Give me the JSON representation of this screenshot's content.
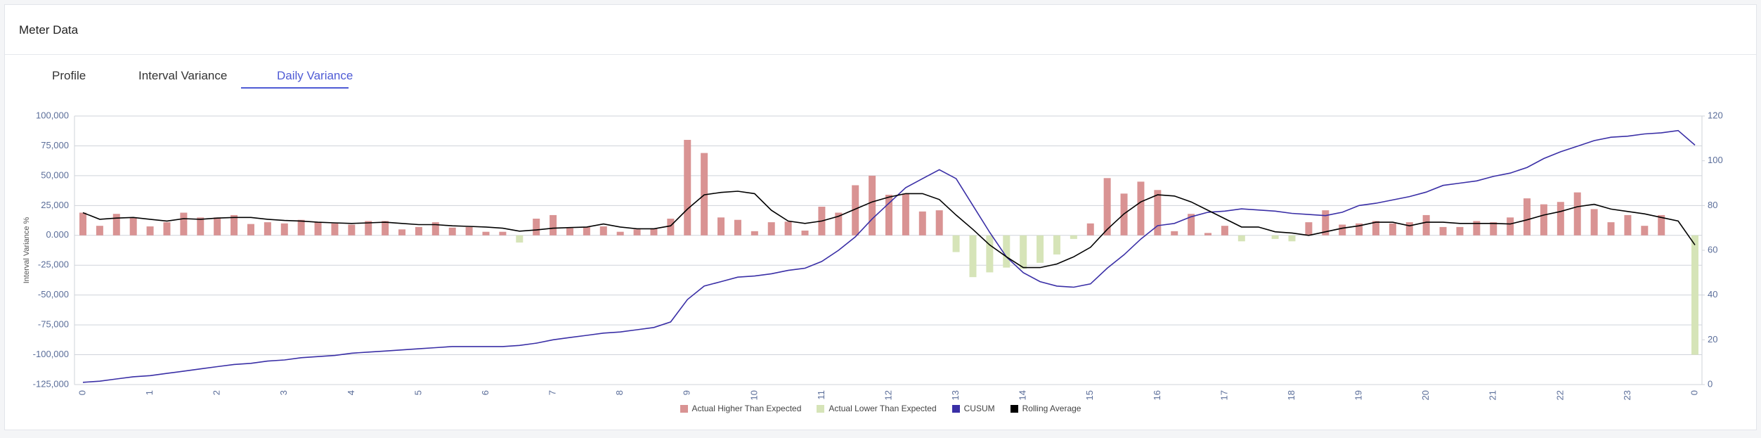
{
  "header": {
    "title": "Meter Data"
  },
  "tabs": [
    "Profile",
    "Interval Variance",
    "Daily Variance"
  ],
  "active_tab": 2,
  "chart_data": {
    "type": "combo",
    "y_label": "Interval Variance %",
    "categories": [
      "0",
      null,
      null,
      null,
      "1",
      null,
      null,
      null,
      "2",
      null,
      null,
      null,
      "3",
      null,
      null,
      null,
      "4",
      null,
      null,
      null,
      "5",
      null,
      null,
      null,
      "6",
      null,
      null,
      null,
      "7",
      null,
      null,
      null,
      "8",
      null,
      null,
      null,
      "9",
      null,
      null,
      null,
      "10",
      null,
      null,
      null,
      "11",
      null,
      null,
      null,
      "12",
      null,
      null,
      null,
      "13",
      null,
      null,
      null,
      "14",
      null,
      null,
      null,
      "15",
      null,
      null,
      null,
      "16",
      null,
      null,
      null,
      "17",
      null,
      null,
      null,
      "18",
      null,
      null,
      null,
      "19",
      null,
      null,
      null,
      "20",
      null,
      null,
      null,
      "21",
      null,
      null,
      null,
      "22",
      null,
      null,
      null,
      "23",
      null,
      null,
      null,
      "0"
    ],
    "ylim": [
      -125000,
      100000
    ],
    "yticks": [
      {
        "value": 100000,
        "label": "100,000"
      },
      {
        "value": 75000,
        "label": "75,000"
      },
      {
        "value": 50000,
        "label": "50,000"
      },
      {
        "value": 25000,
        "label": "25,000"
      },
      {
        "value": 0,
        "label": "0.000"
      },
      {
        "value": -25000,
        "label": "-25,000"
      },
      {
        "value": -50000,
        "label": "-50,000"
      },
      {
        "value": -75000,
        "label": "-75,000"
      },
      {
        "value": -100000,
        "label": "-100,000"
      },
      {
        "value": -125000,
        "label": "-125,000"
      }
    ],
    "y2lim": [
      0,
      120
    ],
    "y2ticks": [
      0,
      20,
      40,
      60,
      80,
      100,
      120
    ],
    "grid": true,
    "legend": "bottom",
    "series": [
      {
        "name": "Actual Higher Than Expected",
        "type": "bar",
        "color": "#d99393",
        "values": [
          19000,
          8000,
          18000,
          15000,
          7500,
          11000,
          19000,
          15000,
          15000,
          17000,
          9500,
          11000,
          10000,
          13000,
          11000,
          10000,
          9000,
          12000,
          12000,
          5000,
          7000,
          11000,
          6500,
          7000,
          3000,
          3000,
          null,
          14000,
          17000,
          6000,
          7000,
          7500,
          3000,
          5000,
          6000,
          14000,
          80000,
          69000,
          15000,
          13000,
          3500,
          11000,
          11500,
          4000,
          24000,
          19000,
          42000,
          50000,
          34000,
          35000,
          20000,
          21000,
          null,
          null,
          null,
          null,
          null,
          null,
          null,
          null,
          10000,
          48000,
          35000,
          45000,
          38000,
          3500,
          18000,
          2000,
          8000,
          null,
          null,
          null,
          null,
          11000,
          21000,
          9000,
          10000,
          12000,
          10000,
          11000,
          17000,
          7000,
          7000,
          12000,
          11000,
          15000,
          31000,
          26000,
          28000,
          36000,
          22000,
          11000,
          17000,
          8000,
          17000,
          null,
          null
        ]
      },
      {
        "name": "Actual Lower Than Expected",
        "type": "bar",
        "color": "#d6e4b8",
        "values": [
          null,
          null,
          null,
          null,
          null,
          null,
          null,
          null,
          null,
          null,
          null,
          null,
          null,
          null,
          null,
          null,
          null,
          null,
          null,
          null,
          null,
          null,
          null,
          null,
          null,
          null,
          -6000,
          null,
          null,
          null,
          null,
          null,
          null,
          null,
          null,
          null,
          null,
          null,
          null,
          null,
          null,
          null,
          null,
          null,
          null,
          null,
          null,
          null,
          null,
          null,
          null,
          null,
          -14000,
          -35000,
          -31000,
          -27000,
          -28000,
          -23000,
          -16000,
          -3000,
          null,
          null,
          null,
          null,
          null,
          null,
          null,
          null,
          null,
          -5000,
          null,
          -3000,
          -5000,
          null,
          null,
          null,
          null,
          null,
          null,
          null,
          null,
          null,
          null,
          null,
          null,
          null,
          null,
          null,
          null,
          null,
          null,
          null,
          null,
          null,
          null,
          null,
          -100000
        ]
      },
      {
        "name": "CUSUM",
        "type": "line",
        "axis": "y2",
        "color": "#3a2fa6",
        "values": [
          1,
          1.5,
          2.5,
          3.5,
          4,
          5,
          6,
          7,
          8,
          9,
          9.5,
          10.5,
          11,
          12,
          12.5,
          13,
          14,
          14.5,
          15,
          15.5,
          16,
          16.5,
          17,
          17,
          17,
          17,
          17.5,
          18.5,
          20,
          21,
          22,
          23,
          23.5,
          24.5,
          25.5,
          28,
          38,
          44,
          46,
          48,
          48.5,
          49.5,
          51,
          52,
          55,
          60,
          66,
          74,
          81,
          88,
          92,
          96,
          92,
          80,
          68,
          57,
          50,
          46,
          44,
          43.5,
          45,
          52,
          58,
          65,
          71,
          72,
          75,
          77,
          77.5,
          78.5,
          78,
          77.5,
          76.5,
          76,
          75.5,
          77,
          80,
          81,
          82.5,
          84,
          86,
          89,
          90,
          91,
          93,
          94.5,
          97,
          101,
          104,
          106.5,
          109,
          110.5,
          111,
          112,
          112.5,
          113.5,
          107
        ]
      },
      {
        "name": "Rolling Average",
        "type": "line",
        "color": "#000000",
        "values": [
          19000,
          13500,
          14500,
          15000,
          13500,
          12000,
          14000,
          13500,
          14500,
          15000,
          15000,
          13500,
          12500,
          12000,
          11000,
          10500,
          10000,
          10500,
          11000,
          10000,
          9000,
          9000,
          8000,
          7500,
          7000,
          6000,
          3500,
          4500,
          6000,
          6500,
          7000,
          9500,
          7000,
          5500,
          5500,
          8000,
          22000,
          34000,
          36000,
          37000,
          35000,
          21000,
          12000,
          10000,
          12000,
          16000,
          22000,
          28000,
          32000,
          35000,
          35000,
          30000,
          17000,
          5000,
          -8000,
          -18000,
          -27000,
          -27000,
          -24000,
          -18000,
          -10000,
          5000,
          18000,
          28000,
          34000,
          33000,
          28000,
          21000,
          14000,
          7000,
          7000,
          3000,
          2000,
          0,
          3000,
          6000,
          8000,
          11000,
          11000,
          8000,
          11000,
          11000,
          10000,
          10000,
          10000,
          9500,
          13000,
          17000,
          20000,
          24000,
          26000,
          22000,
          20000,
          18000,
          15000,
          12000,
          -8000
        ]
      }
    ]
  }
}
